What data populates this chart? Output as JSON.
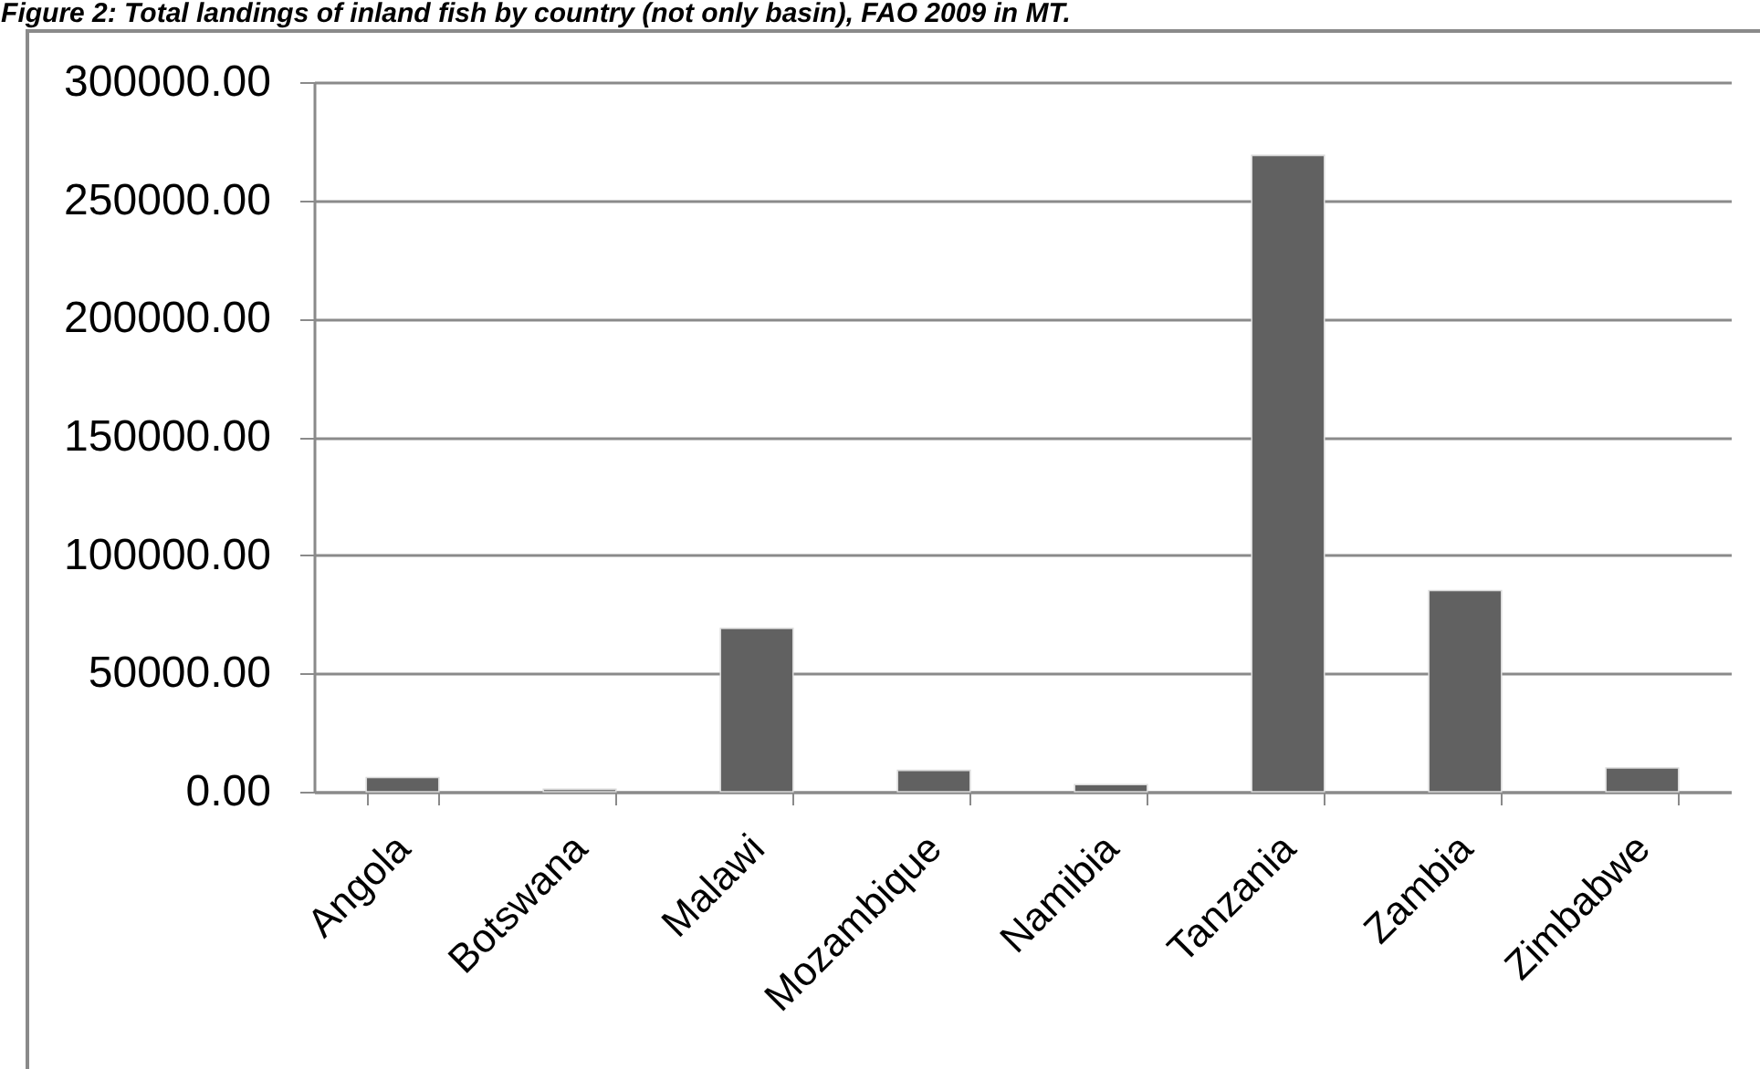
{
  "chart_data": {
    "type": "bar",
    "title": "Figure 2: Total landings of inland fish by country (not only basin), FAO 2009 in MT.",
    "categories": [
      "Angola",
      "Botswana",
      "Malawi",
      "Mozambique",
      "Namibia",
      "Tanzania",
      "Zambia",
      "Zimbabwe"
    ],
    "values": [
      6000,
      1000,
      69000,
      9000,
      3000,
      269000,
      85000,
      10000
    ],
    "color": "#616161",
    "ylim": [
      0,
      300000
    ],
    "yticks": [
      {
        "value": 0,
        "label": "0.00"
      },
      {
        "value": 50000,
        "label": "50000.00"
      },
      {
        "value": 100000,
        "label": "100000.00"
      },
      {
        "value": 150000,
        "label": "150000.00"
      },
      {
        "value": 200000,
        "label": "200000.00"
      },
      {
        "value": 250000,
        "label": "250000.00"
      },
      {
        "value": 300000,
        "label": "300000.00"
      }
    ],
    "grid": "y"
  }
}
